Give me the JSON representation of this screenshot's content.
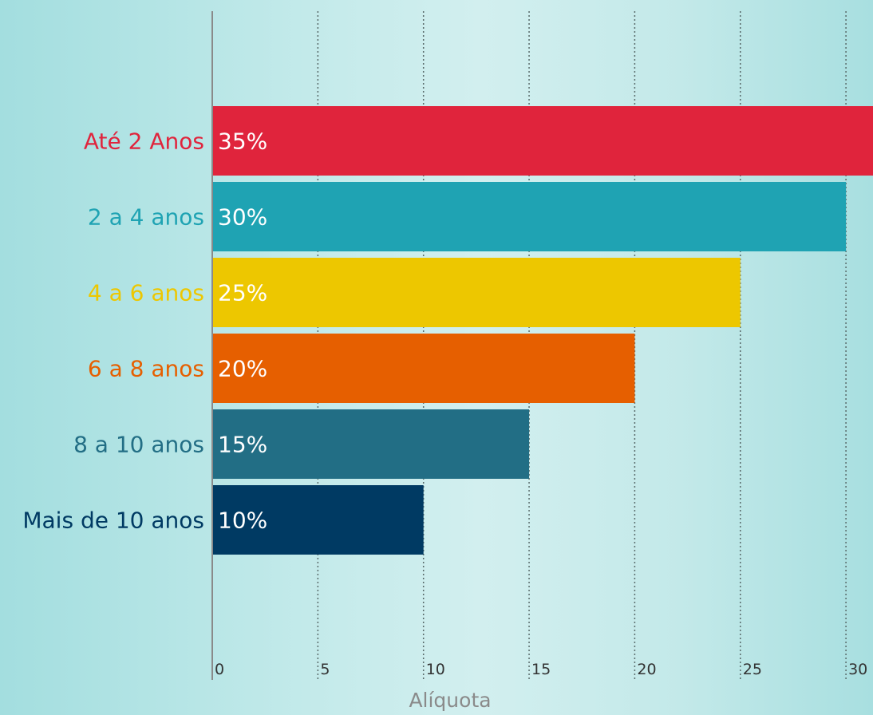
{
  "chart_data": {
    "type": "bar",
    "orientation": "horizontal",
    "categories": [
      "Até 2 Anos",
      "2 a 4 anos",
      "4 a 6 anos",
      "6 a 8 anos",
      "8 a 10 anos",
      "Mais de 10 anos"
    ],
    "values": [
      35,
      30,
      25,
      20,
      15,
      10
    ],
    "value_labels": [
      "35%",
      "30%",
      "25%",
      "20%",
      "15%",
      "10%"
    ],
    "colors": [
      "#e0243c",
      "#1fa3b3",
      "#edc700",
      "#e65f00",
      "#226e85",
      "#003a63"
    ],
    "xlabel": "Alíquota",
    "xticks": [
      0,
      5,
      10,
      15,
      20,
      25,
      30
    ],
    "xlim": [
      0,
      31.2
    ],
    "grid": true,
    "grid_style": "dotted-vertical"
  }
}
